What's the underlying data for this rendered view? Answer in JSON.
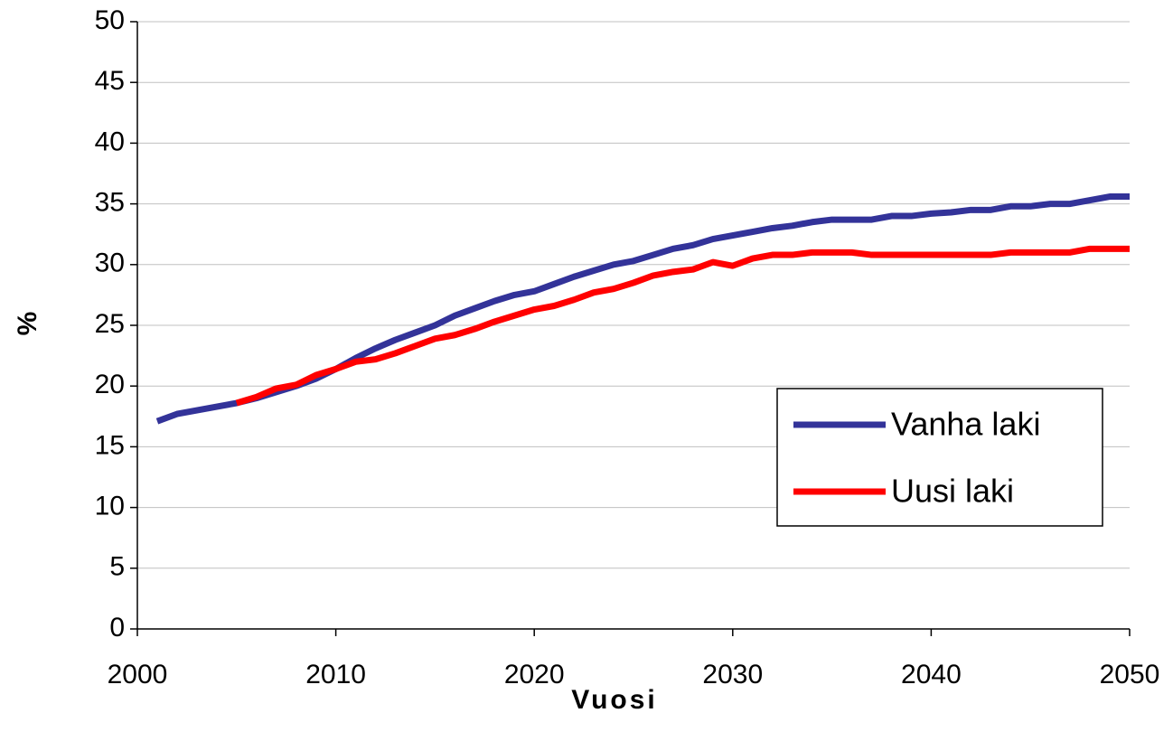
{
  "chart_data": {
    "type": "line",
    "xlabel": "Vuosi",
    "ylabel": "%",
    "x": [
      2001,
      2002,
      2003,
      2004,
      2005,
      2006,
      2007,
      2008,
      2009,
      2010,
      2011,
      2012,
      2013,
      2014,
      2015,
      2016,
      2017,
      2018,
      2019,
      2020,
      2021,
      2022,
      2023,
      2024,
      2025,
      2026,
      2027,
      2028,
      2029,
      2030,
      2031,
      2032,
      2033,
      2034,
      2035,
      2036,
      2037,
      2038,
      2039,
      2040,
      2041,
      2042,
      2043,
      2044,
      2045,
      2046,
      2047,
      2048,
      2049,
      2050
    ],
    "series": [
      {
        "name": "Vanha laki",
        "color": "#333399",
        "values": [
          17.1,
          17.7,
          18.0,
          18.3,
          18.6,
          19.0,
          19.5,
          20.0,
          20.6,
          21.4,
          22.3,
          23.1,
          23.8,
          24.4,
          25.0,
          25.8,
          26.4,
          27.0,
          27.5,
          27.8,
          28.4,
          29.0,
          29.5,
          30.0,
          30.3,
          30.8,
          31.3,
          31.6,
          32.1,
          32.4,
          32.7,
          33.0,
          33.2,
          33.5,
          33.7,
          33.7,
          33.7,
          34.0,
          34.0,
          34.2,
          34.3,
          34.5,
          34.5,
          34.8,
          34.8,
          35.0,
          35.0,
          35.3,
          35.6,
          35.6
        ]
      },
      {
        "name": "Uusi laki",
        "color": "#ff0000",
        "values": [
          null,
          null,
          null,
          null,
          18.6,
          19.1,
          19.8,
          20.1,
          20.9,
          21.4,
          22.0,
          22.2,
          22.7,
          23.3,
          23.9,
          24.2,
          24.7,
          25.3,
          25.8,
          26.3,
          26.6,
          27.1,
          27.7,
          28.0,
          28.5,
          29.1,
          29.4,
          29.6,
          30.2,
          29.9,
          30.5,
          30.8,
          30.8,
          31.0,
          31.0,
          31.0,
          30.8,
          30.8,
          30.8,
          30.8,
          30.8,
          30.8,
          30.8,
          31.0,
          31.0,
          31.0,
          31.0,
          31.3,
          31.3,
          31.3
        ]
      }
    ],
    "xlim": [
      2000,
      2050
    ],
    "xticks": [
      2000,
      2010,
      2020,
      2030,
      2040,
      2050
    ],
    "ylim": [
      0,
      50
    ],
    "yticks": [
      0,
      5,
      10,
      15,
      20,
      25,
      30,
      35,
      40,
      45,
      50
    ],
    "grid": true,
    "legend": "lower right"
  }
}
